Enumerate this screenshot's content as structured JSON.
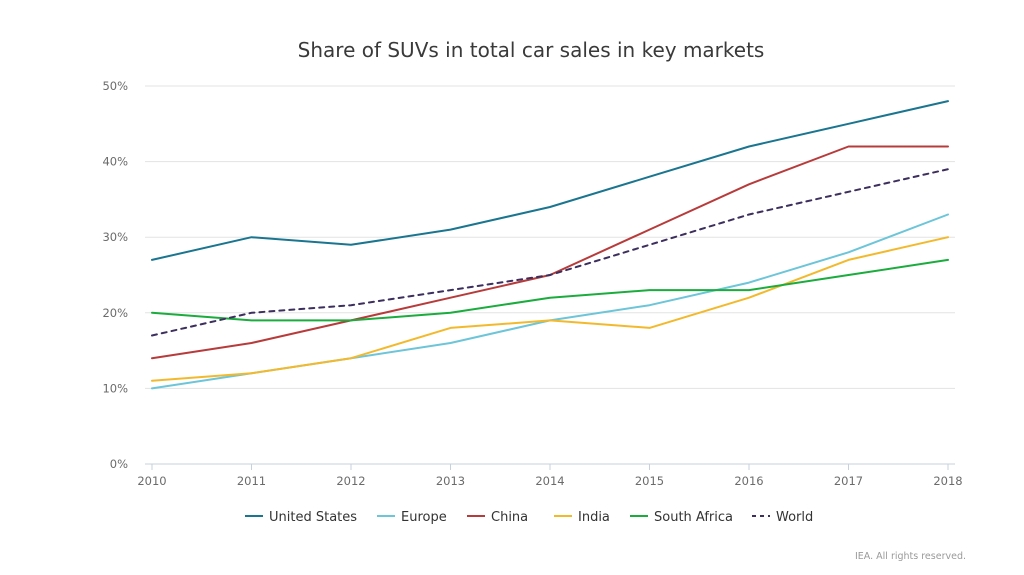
{
  "chart_data": {
    "type": "line",
    "title": "Share of SUVs in total car sales in key markets",
    "x": [
      "2010",
      "2011",
      "2012",
      "2013",
      "2014",
      "2015",
      "2016",
      "2017",
      "2018"
    ],
    "yticks": [
      "0%",
      "10%",
      "20%",
      "30%",
      "40%",
      "50%"
    ],
    "ylim": [
      0,
      50
    ],
    "grid": true,
    "legend_position": "bottom",
    "series": [
      {
        "name": "United States",
        "color": "#1a7590",
        "dashed": false,
        "values": [
          27,
          30,
          29,
          31,
          34,
          38,
          42,
          45,
          48
        ]
      },
      {
        "name": "Europe",
        "color": "#6cc5d8",
        "dashed": false,
        "values": [
          10,
          12,
          14,
          16,
          19,
          21,
          24,
          28,
          33
        ]
      },
      {
        "name": "China",
        "color": "#b83b3b",
        "dashed": false,
        "values": [
          14,
          16,
          19,
          22,
          25,
          31,
          37,
          42,
          42
        ]
      },
      {
        "name": "India",
        "color": "#f2b92c",
        "dashed": false,
        "values": [
          11,
          12,
          14,
          18,
          19,
          18,
          22,
          27,
          30
        ]
      },
      {
        "name": "South Africa",
        "color": "#1aac3d",
        "dashed": false,
        "values": [
          20,
          19,
          19,
          20,
          22,
          23,
          23,
          25,
          27
        ]
      },
      {
        "name": "World",
        "color": "#3c2f5e",
        "dashed": true,
        "values": [
          17,
          20,
          21,
          23,
          25,
          29,
          33,
          36,
          39
        ]
      }
    ]
  },
  "footer": "IEA. All rights reserved."
}
